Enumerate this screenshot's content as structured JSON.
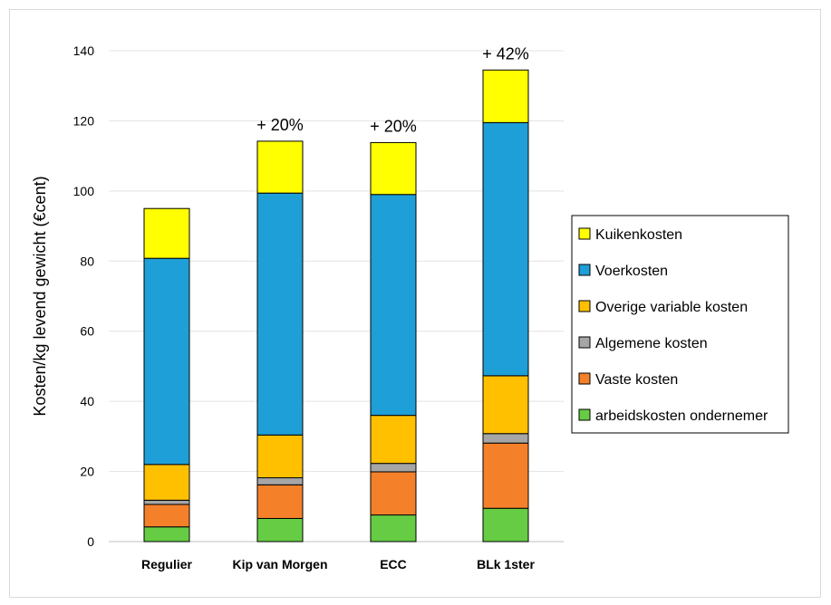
{
  "chart_data": {
    "type": "bar",
    "stacked": true,
    "title": "",
    "xlabel": "",
    "ylabel": "Kosten/kg levend gewicht (€cent)",
    "ylim": [
      0,
      140
    ],
    "yticks": [
      0,
      20,
      40,
      60,
      80,
      100,
      120,
      140
    ],
    "grid": true,
    "legend_position": "right",
    "categories": [
      "Regulier",
      "Kip van Morgen",
      "ECC",
      "BLk 1ster"
    ],
    "series": [
      {
        "name": "arbeidskosten ondernemer",
        "color": "#66cc44",
        "values": [
          4.2,
          6.6,
          7.6,
          9.5
        ]
      },
      {
        "name": "Vaste kosten",
        "color": "#f5802a",
        "values": [
          6.4,
          9.6,
          12.3,
          18.6
        ]
      },
      {
        "name": "Algemene kosten",
        "color": "#a6a6a6",
        "values": [
          1.2,
          2.0,
          2.4,
          2.7
        ]
      },
      {
        "name": "Overige variable kosten",
        "color": "#ffc000",
        "values": [
          10.2,
          12.2,
          13.7,
          16.5
        ]
      },
      {
        "name": "Voerkosten",
        "color": "#1f9fd8",
        "values": [
          58.8,
          69.0,
          63.0,
          72.2
        ]
      },
      {
        "name": "Kuikenkosten",
        "color": "#ffff00",
        "values": [
          14.2,
          14.8,
          14.8,
          15.0
        ]
      }
    ],
    "annotations": [
      "",
      "+ 20%",
      "+ 20%",
      "+ 42%"
    ],
    "legend_order": [
      "Kuikenkosten",
      "Voerkosten",
      "Overige variable kosten",
      "Algemene kosten",
      "Vaste kosten",
      "arbeidskosten ondernemer"
    ]
  }
}
